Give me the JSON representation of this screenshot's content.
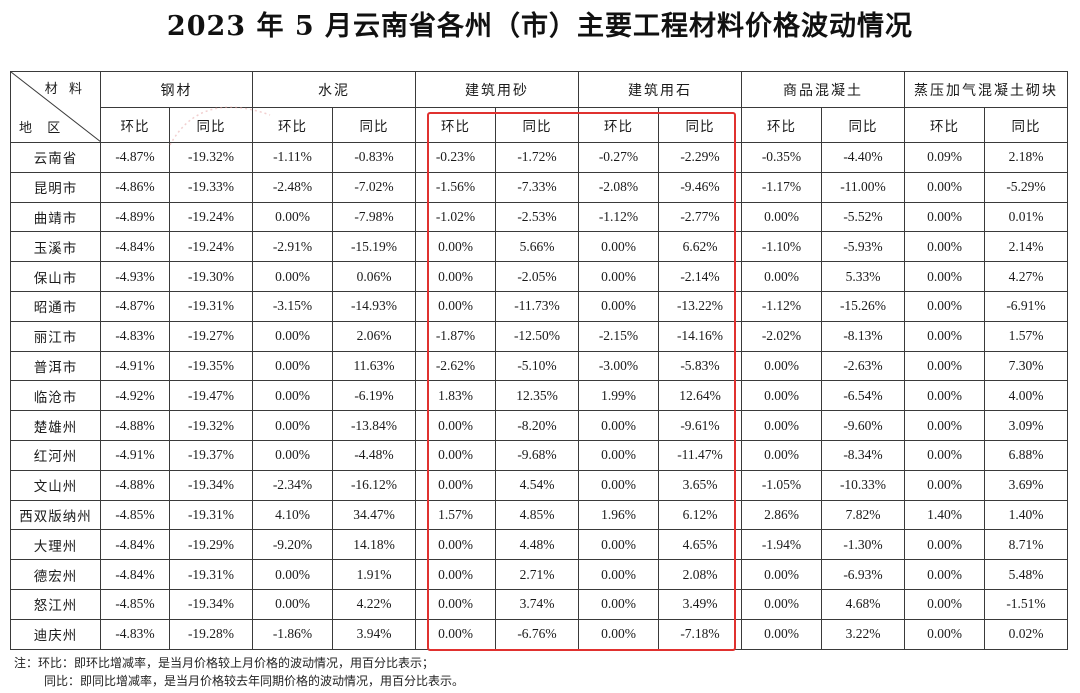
{
  "title": "2023 年 5 月云南省各州（市）主要工程材料价格波动情况",
  "corner": {
    "material": "材 料",
    "region": "地 区"
  },
  "materials": [
    "钢材",
    "水泥",
    "建筑用砂",
    "建筑用石",
    "商品混凝土",
    "蒸压加气混凝土砌块"
  ],
  "sub_headers": [
    "环比",
    "同比"
  ],
  "rows": [
    {
      "region": "云南省",
      "values": [
        "-4.87%",
        "-19.32%",
        "-1.11%",
        "-0.83%",
        "-0.23%",
        "-1.72%",
        "-0.27%",
        "-2.29%",
        "-0.35%",
        "-4.40%",
        "0.09%",
        "2.18%"
      ]
    },
    {
      "region": "昆明市",
      "values": [
        "-4.86%",
        "-19.33%",
        "-2.48%",
        "-7.02%",
        "-1.56%",
        "-7.33%",
        "-2.08%",
        "-9.46%",
        "-1.17%",
        "-11.00%",
        "0.00%",
        "-5.29%"
      ]
    },
    {
      "region": "曲靖市",
      "values": [
        "-4.89%",
        "-19.24%",
        "0.00%",
        "-7.98%",
        "-1.02%",
        "-2.53%",
        "-1.12%",
        "-2.77%",
        "0.00%",
        "-5.52%",
        "0.00%",
        "0.01%"
      ]
    },
    {
      "region": "玉溪市",
      "values": [
        "-4.84%",
        "-19.24%",
        "-2.91%",
        "-15.19%",
        "0.00%",
        "5.66%",
        "0.00%",
        "6.62%",
        "-1.10%",
        "-5.93%",
        "0.00%",
        "2.14%"
      ]
    },
    {
      "region": "保山市",
      "values": [
        "-4.93%",
        "-19.30%",
        "0.00%",
        "0.06%",
        "0.00%",
        "-2.05%",
        "0.00%",
        "-2.14%",
        "0.00%",
        "5.33%",
        "0.00%",
        "4.27%"
      ]
    },
    {
      "region": "昭通市",
      "values": [
        "-4.87%",
        "-19.31%",
        "-3.15%",
        "-14.93%",
        "0.00%",
        "-11.73%",
        "0.00%",
        "-13.22%",
        "-1.12%",
        "-15.26%",
        "0.00%",
        "-6.91%"
      ]
    },
    {
      "region": "丽江市",
      "values": [
        "-4.83%",
        "-19.27%",
        "0.00%",
        "2.06%",
        "-1.87%",
        "-12.50%",
        "-2.15%",
        "-14.16%",
        "-2.02%",
        "-8.13%",
        "0.00%",
        "1.57%"
      ]
    },
    {
      "region": "普洱市",
      "values": [
        "-4.91%",
        "-19.35%",
        "0.00%",
        "11.63%",
        "-2.62%",
        "-5.10%",
        "-3.00%",
        "-5.83%",
        "0.00%",
        "-2.63%",
        "0.00%",
        "7.30%"
      ]
    },
    {
      "region": "临沧市",
      "values": [
        "-4.92%",
        "-19.47%",
        "0.00%",
        "-6.19%",
        "1.83%",
        "12.35%",
        "1.99%",
        "12.64%",
        "0.00%",
        "-6.54%",
        "0.00%",
        "4.00%"
      ]
    },
    {
      "region": "楚雄州",
      "values": [
        "-4.88%",
        "-19.32%",
        "0.00%",
        "-13.84%",
        "0.00%",
        "-8.20%",
        "0.00%",
        "-9.61%",
        "0.00%",
        "-9.60%",
        "0.00%",
        "3.09%"
      ]
    },
    {
      "region": "红河州",
      "values": [
        "-4.91%",
        "-19.37%",
        "0.00%",
        "-4.48%",
        "0.00%",
        "-9.68%",
        "0.00%",
        "-11.47%",
        "0.00%",
        "-8.34%",
        "0.00%",
        "6.88%"
      ]
    },
    {
      "region": "文山州",
      "values": [
        "-4.88%",
        "-19.34%",
        "-2.34%",
        "-16.12%",
        "0.00%",
        "4.54%",
        "0.00%",
        "3.65%",
        "-1.05%",
        "-10.33%",
        "0.00%",
        "3.69%"
      ]
    },
    {
      "region": "西双版纳州",
      "values": [
        "-4.85%",
        "-19.31%",
        "4.10%",
        "34.47%",
        "1.57%",
        "4.85%",
        "1.96%",
        "6.12%",
        "2.86%",
        "7.82%",
        "1.40%",
        "1.40%"
      ]
    },
    {
      "region": "大理州",
      "values": [
        "-4.84%",
        "-19.29%",
        "-9.20%",
        "14.18%",
        "0.00%",
        "4.48%",
        "0.00%",
        "4.65%",
        "-1.94%",
        "-1.30%",
        "0.00%",
        "8.71%"
      ]
    },
    {
      "region": "德宏州",
      "values": [
        "-4.84%",
        "-19.31%",
        "0.00%",
        "1.91%",
        "0.00%",
        "2.71%",
        "0.00%",
        "2.08%",
        "0.00%",
        "-6.93%",
        "0.00%",
        "5.48%"
      ]
    },
    {
      "region": "怒江州",
      "values": [
        "-4.85%",
        "-19.34%",
        "0.00%",
        "4.22%",
        "0.00%",
        "3.74%",
        "0.00%",
        "3.49%",
        "0.00%",
        "4.68%",
        "0.00%",
        "-1.51%"
      ]
    },
    {
      "region": "迪庆州",
      "values": [
        "-4.83%",
        "-19.28%",
        "-1.86%",
        "3.94%",
        "0.00%",
        "-6.76%",
        "0.00%",
        "-7.18%",
        "0.00%",
        "3.22%",
        "0.00%",
        "0.02%"
      ]
    }
  ],
  "notes": [
    "注：环比：即环比增减率，是当月价格较上月价格的波动情况，用百分比表示；",
    "同比：即同比增减率，是当月价格较去年同期价格的波动情况，用百分比表示。"
  ],
  "colors": {
    "highlight": "#e0312f",
    "stamp": "#e5a0a0"
  }
}
